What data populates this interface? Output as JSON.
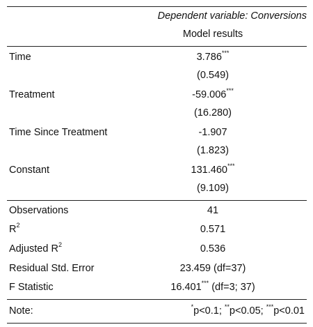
{
  "header": {
    "dependent_variable": "Dependent variable: Conversions",
    "model_label": "Model results"
  },
  "coefficients": [
    {
      "name": "Time",
      "estimate": "3.786",
      "stars": "***",
      "se": "(0.549)"
    },
    {
      "name": "Treatment",
      "estimate": "-59.006",
      "stars": "***",
      "se": "(16.280)"
    },
    {
      "name": "Time Since Treatment",
      "estimate": "-1.907",
      "stars": "",
      "se": "(1.823)"
    },
    {
      "name": "Constant",
      "estimate": "131.460",
      "stars": "***",
      "se": "(9.109)"
    }
  ],
  "stats": {
    "observations_label": "Observations",
    "observations_value": "41",
    "r2_label": "R",
    "r2_sup": "2",
    "r2_value": "0.571",
    "adj_r2_label": "Adjusted R",
    "adj_r2_sup": "2",
    "adj_r2_value": "0.536",
    "rse_label": "Residual Std. Error",
    "rse_value": "23.459 (df=37)",
    "f_label": "F Statistic",
    "f_value": "16.401",
    "f_stars": "***",
    "f_df": " (df=3; 37)"
  },
  "note": {
    "label": "Note:",
    "star1": "*",
    "text1": "p<0.1; ",
    "star2": "**",
    "text2": "p<0.05; ",
    "star3": "***",
    "text3": "p<0.01"
  }
}
